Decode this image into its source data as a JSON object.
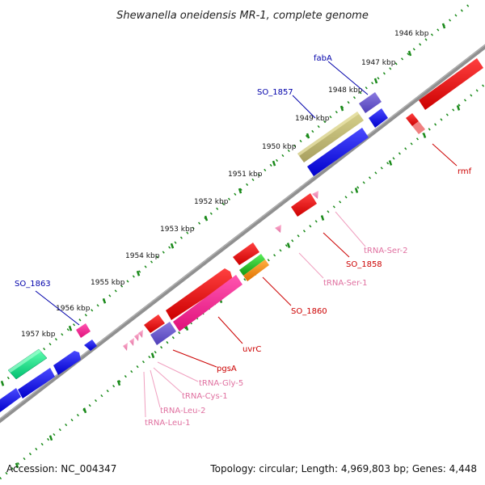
{
  "title": "Shewanella oneidensis MR-1, complete genome",
  "footer": {
    "accession": "Accession: NC_004347",
    "summary": "Topology: circular; Length: 4,969,803 bp; Genes: 4,448"
  },
  "ticks": [
    "1946 kbp",
    "1947 kbp",
    "1948 kbp",
    "1949 kbp",
    "1950 kbp",
    "1951 kbp",
    "1952 kbp",
    "1953 kbp",
    "1954 kbp",
    "1955 kbp",
    "1956 kbp",
    "1957 kbp"
  ],
  "gene_labels": {
    "fabA": "fabA",
    "so1857": "SO_1857",
    "so1863": "SO_1863",
    "rmf": "rmf",
    "trnaSer2": "tRNA-Ser-2",
    "so1858": "SO_1858",
    "trnaSer1": "tRNA-Ser-1",
    "so1860": "SO_1860",
    "uvrC": "uvrC",
    "pgsA": "pgsA",
    "trnaGly5": "tRNA-Gly-5",
    "trnaCys1": "tRNA-Cys-1",
    "trnaLeu2": "tRNA-Leu-2",
    "trnaLeu1": "tRNA-Leu-1"
  },
  "colors": {
    "backbone": "#808080",
    "tick_green": "#1a8a1a",
    "cds_blue": "#0000ee",
    "cds_red": "#ee0000",
    "trna_pink": "#f080b0",
    "gene_magenta": "#ff1493",
    "gene_purple": "#6a5acd",
    "gene_olive": "#bdb76b",
    "gene_teal": "#00e08a",
    "gene_green": "#22cc22",
    "gene_orange": "#ff8c00",
    "label_blue": "#0000aa",
    "label_red": "#cc0000",
    "label_pink": "#e070a0"
  }
}
